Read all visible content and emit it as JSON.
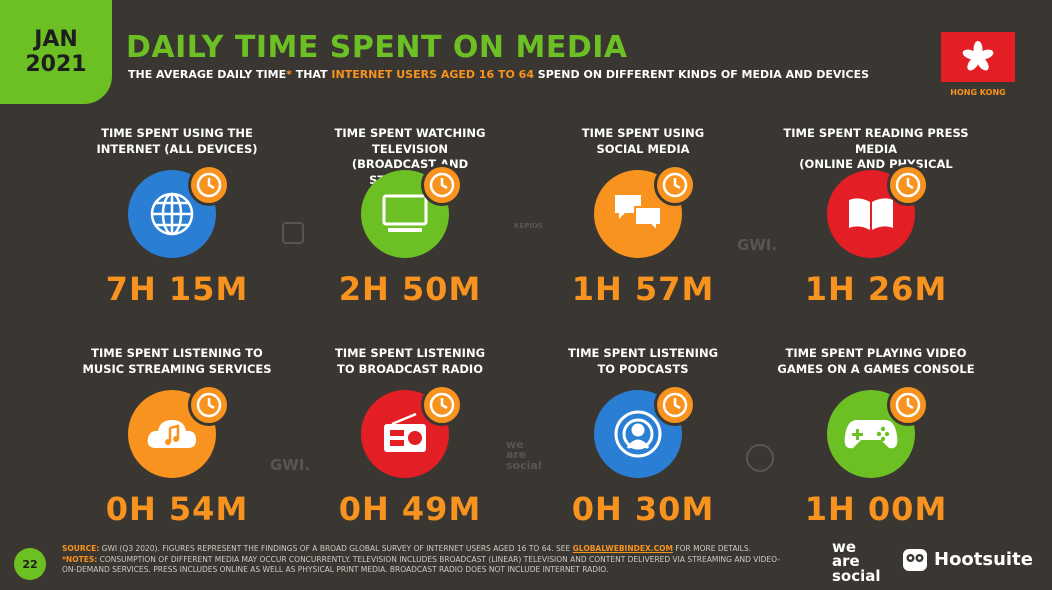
{
  "header": {
    "date_month": "JAN",
    "date_year": "2021",
    "title": "DAILY TIME SPENT ON MEDIA",
    "subtitle_pre": "THE AVERAGE DAILY TIME",
    "subtitle_star": "*",
    "subtitle_mid1": " THAT ",
    "subtitle_hl": "INTERNET USERS AGED 16 TO 64",
    "subtitle_post": " SPEND ON DIFFERENT KINDS OF MEDIA AND DEVICES",
    "country": "HONG KONG"
  },
  "metrics": [
    {
      "label": "TIME SPENT USING THE\nINTERNET (ALL DEVICES)",
      "value": "7H 15M",
      "color": "#2a7fd4",
      "icon": "globe-icon"
    },
    {
      "label": "TIME SPENT WATCHING TELEVISION\n(BROADCAST AND STREAMING)",
      "value": "2H 50M",
      "color": "#6cc024",
      "icon": "television-icon"
    },
    {
      "label": "TIME SPENT USING\nSOCIAL MEDIA",
      "value": "1H 57M",
      "color": "#f7931e",
      "icon": "speech-bubbles-icon"
    },
    {
      "label": "TIME SPENT READING PRESS MEDIA\n(ONLINE AND PHYSICAL PRINT)",
      "value": "1H 26M",
      "color": "#e31e24",
      "icon": "book-icon"
    },
    {
      "label": "TIME SPENT LISTENING TO\nMUSIC STREAMING SERVICES",
      "value": "0H 54M",
      "color": "#f7931e",
      "icon": "cloud-music-icon"
    },
    {
      "label": "TIME SPENT LISTENING\nTO BROADCAST RADIO",
      "value": "0H 49M",
      "color": "#e31e24",
      "icon": "radio-icon"
    },
    {
      "label": "TIME SPENT LISTENING\nTO PODCASTS",
      "value": "0H 30M",
      "color": "#2a7fd4",
      "icon": "podcast-icon"
    },
    {
      "label": "TIME SPENT PLAYING VIDEO\nGAMES ON A GAMES CONSOLE",
      "value": "1H 00M",
      "color": "#6cc024",
      "icon": "gamepad-icon"
    }
  ],
  "partners": {
    "gwi": "GWI.",
    "kepios": "KEPIOS",
    "was_small_1": "we",
    "was_small_2": "are",
    "was_small_3": "social"
  },
  "footer": {
    "page": "22",
    "source_key": "SOURCE:",
    "source_text": " GWI (Q3 2020). FIGURES REPRESENT THE FINDINGS OF A BROAD GLOBAL SURVEY OF INTERNET USERS AGED 16 TO 64. SEE ",
    "source_link": "GLOBALWEBINDEX.COM",
    "source_tail": " FOR MORE DETAILS.",
    "notes_key": "*NOTES:",
    "notes_text": " CONSUMPTION OF DIFFERENT MEDIA MAY OCCUR CONCURRENTLY. TELEVISION INCLUDES BROADCAST (LINEAR) TELEVISION AND CONTENT DELIVERED VIA STREAMING AND VIDEO-ON-DEMAND SERVICES. PRESS INCLUDES ONLINE AS WELL AS PHYSICAL PRINT MEDIA. BROADCAST RADIO DOES NOT INCLUDE INTERNET RADIO.",
    "was_1": "we",
    "was_2": "are",
    "was_3": "social",
    "hootsuite": "Hootsuite"
  }
}
